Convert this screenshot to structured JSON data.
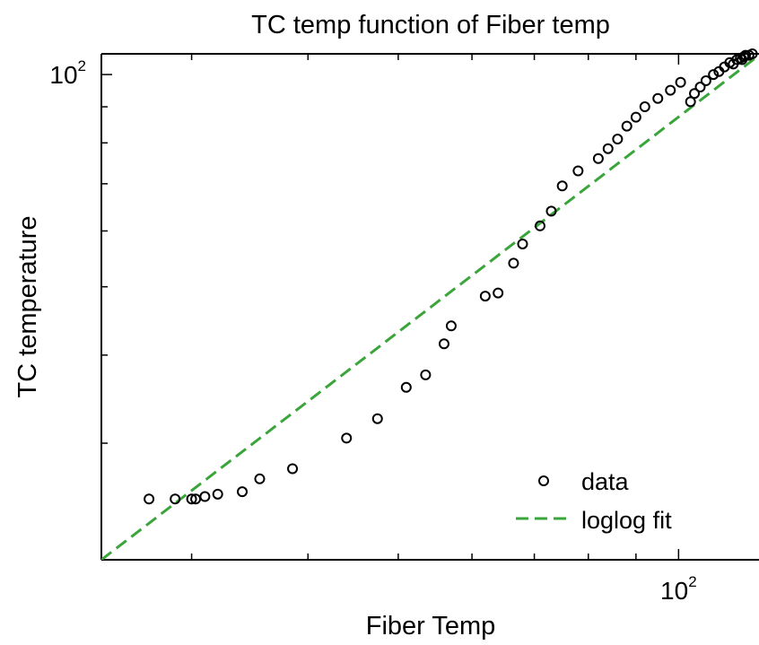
{
  "chart_data": {
    "type": "scatter",
    "title": "TC temp function of Fiber temp",
    "xlabel": "Fiber Temp",
    "ylabel": "TC temperature",
    "xscale": "log",
    "yscale": "log",
    "xlim": [
      24,
      122
    ],
    "ylim": [
      20.5,
      107
    ],
    "grid": false,
    "legend_position": "bottom-right",
    "x_ticks": [
      {
        "value": 100,
        "base": "10",
        "exp": "2"
      }
    ],
    "y_ticks": [
      {
        "value": 100,
        "base": "10",
        "exp": "2"
      }
    ],
    "series": [
      {
        "name": "data",
        "style": "circle-marker",
        "color": "#000000",
        "x": [
          27.0,
          28.8,
          30.0,
          30.3,
          31.0,
          32.0,
          34.0,
          35.5,
          38.5,
          44.0,
          47.5,
          51.0,
          53.5,
          56.0,
          57.0,
          62.0,
          64.0,
          66.5,
          68.0,
          71.0,
          73.0,
          75.0,
          78.0,
          82.0,
          84.0,
          86.0,
          88.0,
          90.0,
          92.0,
          95.0,
          98.0,
          100.5,
          103.0,
          104.0,
          105.5,
          107.0,
          109.0,
          110.5,
          112.0,
          113.5,
          114.5,
          115.5,
          116.5,
          117.0,
          117.5,
          118.0,
          119.0,
          120.0
        ],
        "y": [
          25.0,
          25.0,
          25.0,
          25.0,
          25.2,
          25.4,
          25.6,
          26.7,
          27.6,
          30.5,
          32.5,
          36.0,
          37.5,
          41.5,
          44.0,
          48.5,
          49.0,
          54.0,
          57.5,
          61.0,
          64.0,
          69.5,
          73.0,
          76.0,
          78.5,
          81.0,
          84.5,
          87.0,
          90.0,
          92.5,
          95.0,
          97.5,
          91.5,
          94.0,
          96.0,
          98.0,
          100.0,
          101.0,
          102.5,
          104.0,
          103.5,
          105.0,
          105.5,
          105.0,
          106.0,
          106.5,
          106.5,
          107.0
        ]
      },
      {
        "name": "loglog fit",
        "style": "dashed-line",
        "color": "#3aa53a",
        "x": [
          24,
          122
        ],
        "y": [
          20.5,
          106.5
        ]
      }
    ]
  }
}
